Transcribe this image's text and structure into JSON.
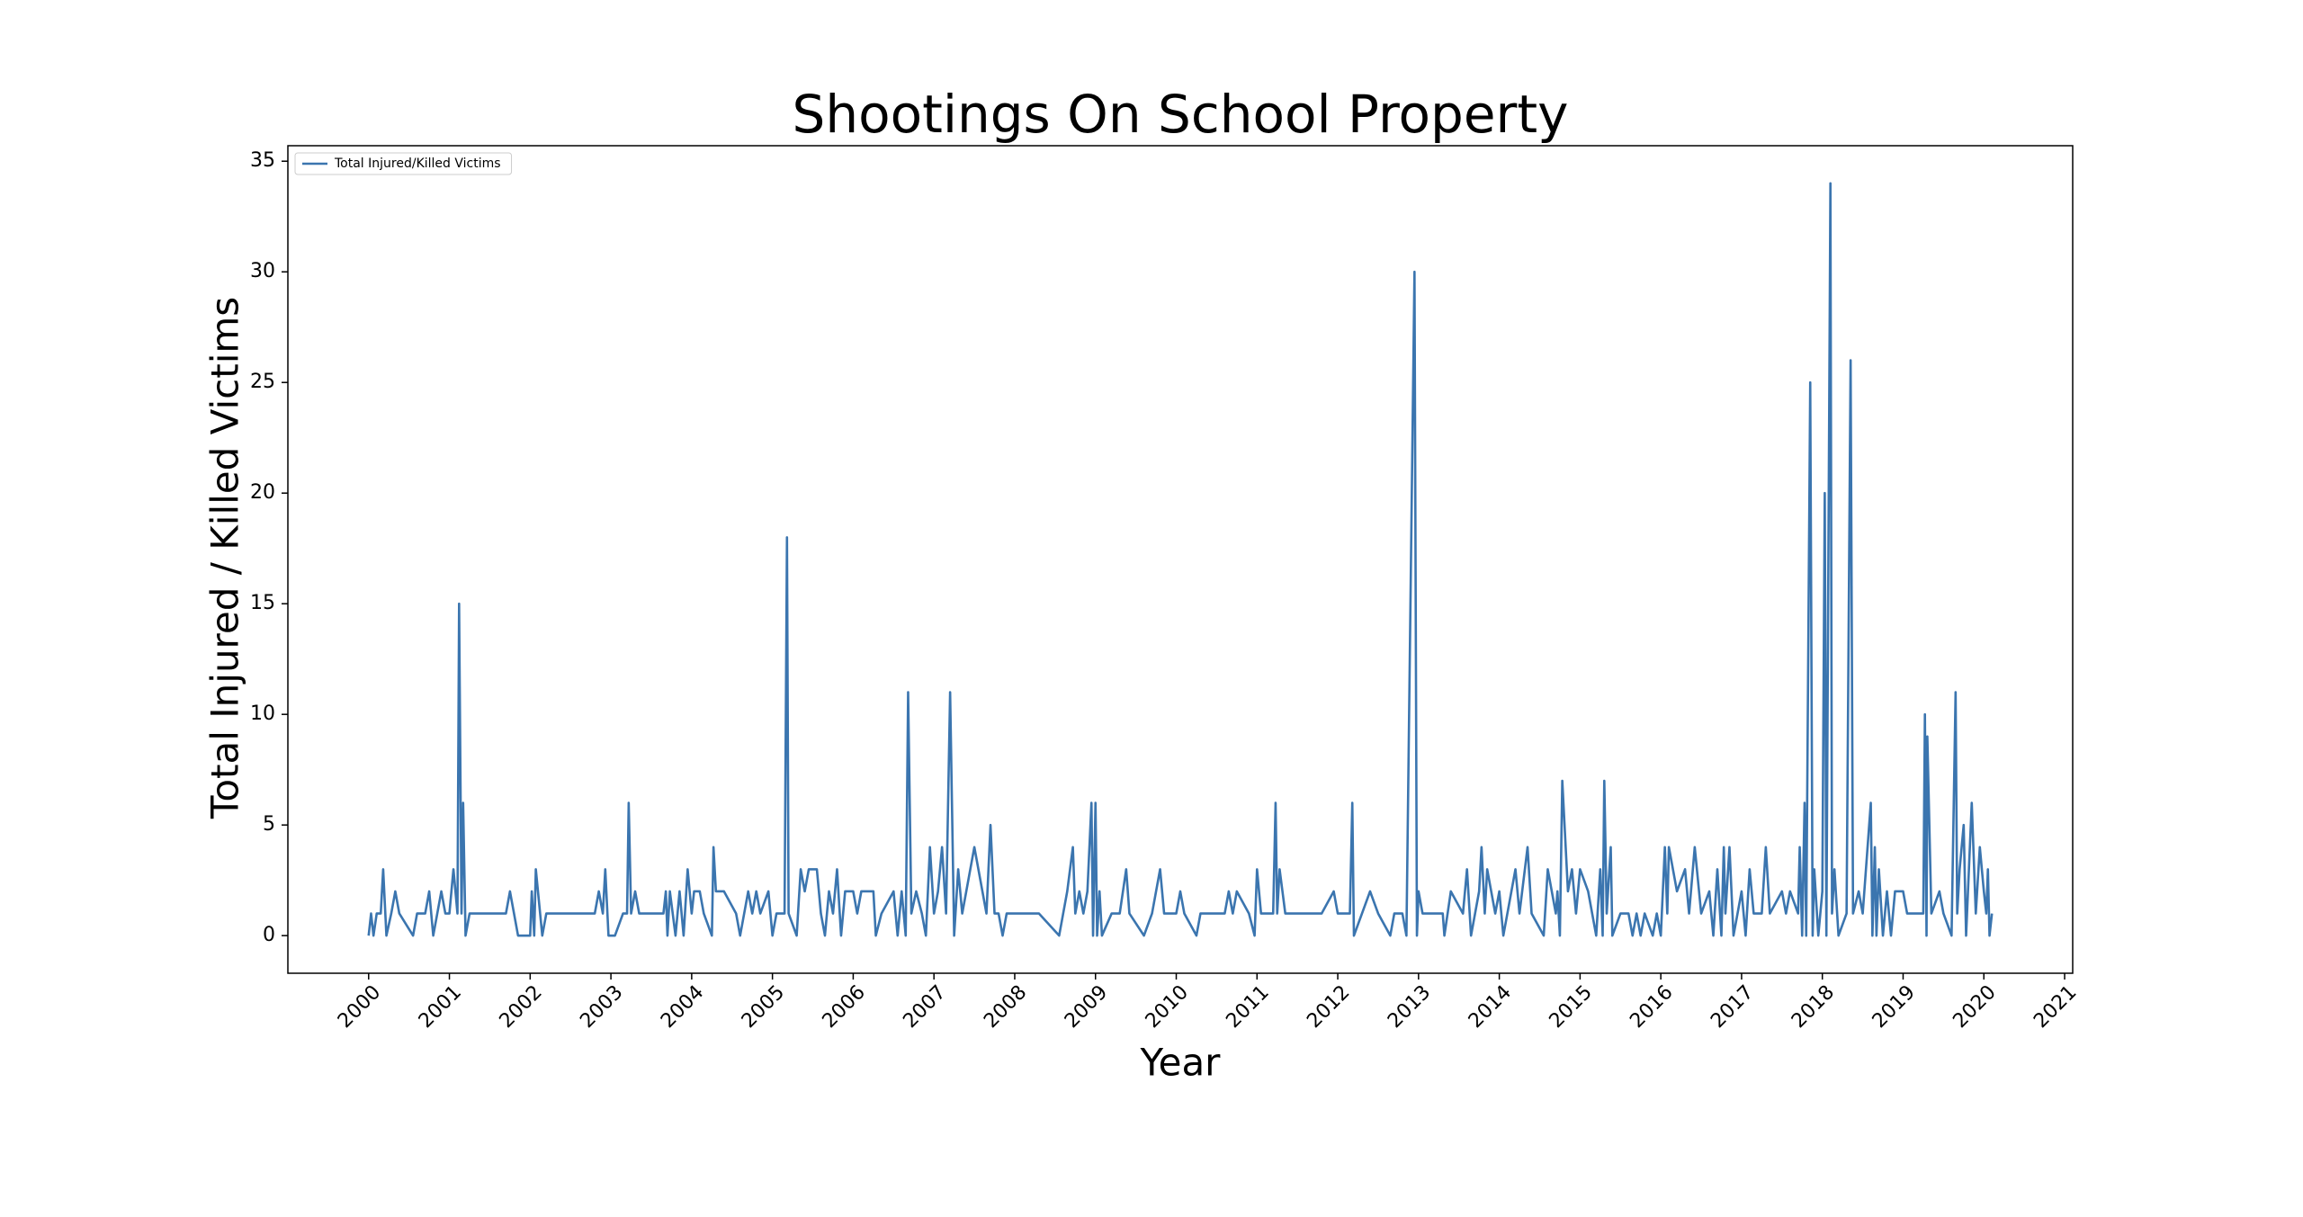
{
  "chart_data": {
    "type": "line",
    "title": "Shootings On School Property",
    "xlabel": "Year",
    "ylabel": "Total Injured / Killed Victims",
    "legend": "upper left",
    "x": [
      2000.0,
      2000.03,
      2000.06,
      2000.1,
      2000.15,
      2000.18,
      2000.22,
      2000.28,
      2000.33,
      2000.38,
      2000.55,
      2000.6,
      2000.7,
      2000.75,
      2000.8,
      2000.9,
      2000.95,
      2001.0,
      2001.05,
      2001.1,
      2001.12,
      2001.15,
      2001.17,
      2001.2,
      2001.25,
      2001.4,
      2001.7,
      2001.75,
      2001.85,
      2002.0,
      2002.02,
      2002.05,
      2002.07,
      2002.15,
      2002.2,
      2002.8,
      2002.85,
      2002.9,
      2002.93,
      2002.97,
      2003.05,
      2003.15,
      2003.2,
      2003.22,
      2003.25,
      2003.3,
      2003.35,
      2003.65,
      2003.68,
      2003.7,
      2003.73,
      2003.8,
      2003.85,
      2003.9,
      2003.95,
      2004.0,
      2004.03,
      2004.1,
      2004.15,
      2004.25,
      2004.27,
      2004.3,
      2004.4,
      2004.55,
      2004.6,
      2004.65,
      2004.7,
      2004.75,
      2004.8,
      2004.85,
      2004.95,
      2005.0,
      2005.05,
      2005.15,
      2005.18,
      2005.2,
      2005.3,
      2005.35,
      2005.4,
      2005.45,
      2005.55,
      2005.6,
      2005.65,
      2005.7,
      2005.75,
      2005.8,
      2005.85,
      2005.9,
      2006.0,
      2006.05,
      2006.1,
      2006.25,
      2006.28,
      2006.35,
      2006.5,
      2006.55,
      2006.6,
      2006.65,
      2006.68,
      2006.72,
      2006.78,
      2006.85,
      2006.9,
      2006.95,
      2007.0,
      2007.05,
      2007.1,
      2007.15,
      2007.2,
      2007.25,
      2007.3,
      2007.35,
      2007.4,
      2007.5,
      2007.6,
      2007.65,
      2007.7,
      2007.75,
      2007.8,
      2007.85,
      2007.9,
      2008.3,
      2008.55,
      2008.65,
      2008.72,
      2008.75,
      2008.8,
      2008.85,
      2008.9,
      2008.95,
      2008.97,
      2009.0,
      2009.02,
      2009.05,
      2009.08,
      2009.2,
      2009.3,
      2009.38,
      2009.42,
      2009.6,
      2009.7,
      2009.8,
      2009.85,
      2010.0,
      2010.05,
      2010.1,
      2010.25,
      2010.3,
      2010.6,
      2010.65,
      2010.7,
      2010.75,
      2010.9,
      2010.97,
      2011.0,
      2011.05,
      2011.2,
      2011.23,
      2011.25,
      2011.28,
      2011.35,
      2011.8,
      2011.95,
      2012.0,
      2012.15,
      2012.18,
      2012.2,
      2012.3,
      2012.4,
      2012.5,
      2012.65,
      2012.7,
      2012.8,
      2012.85,
      2012.95,
      2012.98,
      2013.0,
      2013.05,
      2013.3,
      2013.32,
      2013.4,
      2013.55,
      2013.6,
      2013.65,
      2013.75,
      2013.78,
      2013.82,
      2013.85,
      2013.95,
      2014.0,
      2014.05,
      2014.1,
      2014.2,
      2014.25,
      2014.35,
      2014.4,
      2014.55,
      2014.6,
      2014.7,
      2014.72,
      2014.75,
      2014.78,
      2014.85,
      2014.9,
      2014.95,
      2015.0,
      2015.1,
      2015.2,
      2015.25,
      2015.28,
      2015.3,
      2015.33,
      2015.38,
      2015.4,
      2015.5,
      2015.6,
      2015.65,
      2015.7,
      2015.75,
      2015.8,
      2015.9,
      2015.95,
      2016.0,
      2016.05,
      2016.08,
      2016.1,
      2016.2,
      2016.3,
      2016.35,
      2016.42,
      2016.5,
      2016.6,
      2016.65,
      2016.7,
      2016.75,
      2016.78,
      2016.8,
      2016.85,
      2016.9,
      2017.0,
      2017.05,
      2017.1,
      2017.15,
      2017.25,
      2017.3,
      2017.35,
      2017.5,
      2017.55,
      2017.6,
      2017.7,
      2017.72,
      2017.75,
      2017.78,
      2017.8,
      2017.85,
      2017.88,
      2017.9,
      2017.95,
      2018.0,
      2018.03,
      2018.05,
      2018.1,
      2018.12,
      2018.15,
      2018.2,
      2018.3,
      2018.35,
      2018.38,
      2018.45,
      2018.5,
      2018.6,
      2018.62,
      2018.65,
      2018.67,
      2018.7,
      2018.75,
      2018.8,
      2018.85,
      2018.9,
      2019.0,
      2019.05,
      2019.25,
      2019.27,
      2019.29,
      2019.3,
      2019.35,
      2019.45,
      2019.5,
      2019.6,
      2019.65,
      2019.67,
      2019.7,
      2019.75,
      2019.78,
      2019.85,
      2019.9,
      2019.95,
      2020.0,
      2020.03,
      2020.05,
      2020.07,
      2020.1
    ],
    "series": [
      {
        "name": "Total Injured/Killed Victims",
        "color": "#3b75af",
        "values": [
          0,
          1,
          0,
          1,
          1,
          3,
          0,
          1,
          2,
          1,
          0,
          1,
          1,
          2,
          0,
          2,
          1,
          1,
          3,
          1,
          15,
          1,
          6,
          0,
          1,
          1,
          1,
          2,
          0,
          0,
          2,
          0,
          3,
          0,
          1,
          1,
          2,
          1,
          3,
          0,
          0,
          1,
          1,
          6,
          1,
          2,
          1,
          1,
          2,
          0,
          2,
          0,
          2,
          0,
          3,
          1,
          2,
          2,
          1,
          0,
          4,
          2,
          2,
          1,
          0,
          1,
          2,
          1,
          2,
          1,
          2,
          0,
          1,
          1,
          18,
          1,
          0,
          3,
          2,
          3,
          3,
          1,
          0,
          2,
          1,
          3,
          0,
          2,
          2,
          1,
          2,
          2,
          0,
          1,
          2,
          0,
          2,
          0,
          11,
          1,
          2,
          1,
          0,
          4,
          1,
          2,
          4,
          1,
          11,
          0,
          3,
          1,
          2,
          4,
          2,
          1,
          5,
          1,
          1,
          0,
          1,
          1,
          0,
          2,
          4,
          1,
          2,
          1,
          2,
          6,
          0,
          6,
          0,
          2,
          0,
          1,
          1,
          3,
          1,
          0,
          1,
          3,
          1,
          1,
          2,
          1,
          0,
          1,
          1,
          2,
          1,
          2,
          1,
          0,
          3,
          1,
          1,
          6,
          1,
          3,
          1,
          1,
          2,
          1,
          1,
          6,
          0,
          1,
          2,
          1,
          0,
          1,
          1,
          0,
          30,
          0,
          2,
          1,
          1,
          0,
          2,
          1,
          3,
          0,
          2,
          4,
          1,
          3,
          1,
          2,
          0,
          1,
          3,
          1,
          4,
          1,
          0,
          3,
          1,
          2,
          0,
          7,
          2,
          3,
          1,
          3,
          2,
          0,
          3,
          0,
          7,
          1,
          4,
          0,
          1,
          1,
          0,
          1,
          0,
          1,
          0,
          1,
          0,
          4,
          1,
          4,
          2,
          3,
          1,
          4,
          1,
          2,
          0,
          3,
          0,
          4,
          1,
          4,
          0,
          2,
          0,
          3,
          1,
          1,
          4,
          1,
          2,
          1,
          2,
          1,
          4,
          0,
          6,
          0,
          25,
          0,
          3,
          0,
          2,
          20,
          0,
          34,
          1,
          3,
          0,
          1,
          26,
          1,
          2,
          1,
          6,
          0,
          4,
          0,
          3,
          0,
          2,
          0,
          2,
          2,
          1,
          1,
          10,
          0,
          9,
          1,
          2,
          1,
          0,
          11,
          1,
          3,
          5,
          0,
          6,
          1,
          4,
          2,
          1,
          3,
          0,
          1
        ]
      }
    ],
    "xlim": [
      1999.0,
      2021.1
    ],
    "ylim": [
      -1.7,
      35.7
    ],
    "xticks": [
      2000,
      2001,
      2002,
      2003,
      2004,
      2005,
      2006,
      2007,
      2008,
      2009,
      2010,
      2011,
      2012,
      2013,
      2014,
      2015,
      2016,
      2017,
      2018,
      2019,
      2020,
      2021
    ],
    "yticks": [
      0,
      5,
      10,
      15,
      20,
      25,
      30,
      35
    ]
  }
}
